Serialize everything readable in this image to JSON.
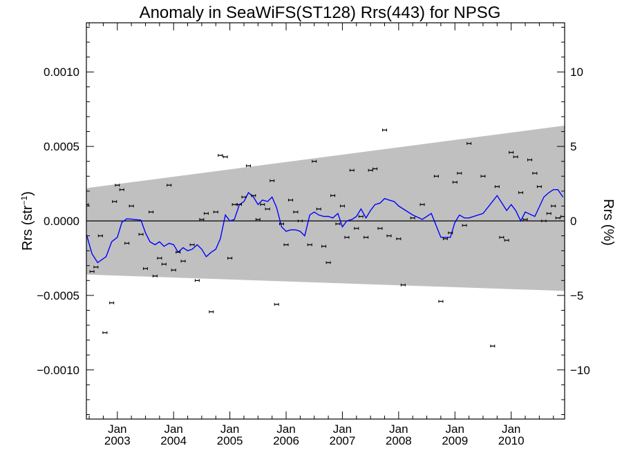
{
  "chart_data": {
    "type": "line",
    "title": "Anomaly in SeaWiFS(ST128) Rrs(443) for NPSG",
    "ylabel_left": "Rrs (str",
    "ylabel_left_sup": "−1",
    "ylabel_left_end": ")",
    "ylabel_right": "Rrs (%)",
    "xlim": [
      2002.45,
      2010.95
    ],
    "ylim": [
      -0.00133,
      0.00133
    ],
    "ylim_right": [
      -13.3,
      13.3
    ],
    "left_ticks": [
      {
        "value": 0.001,
        "label": "0.0010"
      },
      {
        "value": 0.0005,
        "label": "0.0005"
      },
      {
        "value": 0.0,
        "label": "0.0000"
      },
      {
        "value": -0.0005,
        "label": "−0.0005"
      },
      {
        "value": -0.001,
        "label": "−0.0010"
      }
    ],
    "right_ticks": [
      {
        "value": 10,
        "label": "10"
      },
      {
        "value": 5,
        "label": "5"
      },
      {
        "value": 0,
        "label": "0"
      },
      {
        "value": -5,
        "label": "−5"
      },
      {
        "value": -10,
        "label": "−10"
      }
    ],
    "x_ticks": [
      {
        "value": 2003.0,
        "month": "Jan",
        "year": "2003"
      },
      {
        "value": 2004.0,
        "month": "Jan",
        "year": "2004"
      },
      {
        "value": 2005.0,
        "month": "Jan",
        "year": "2005"
      },
      {
        "value": 2006.0,
        "month": "Jan",
        "year": "2006"
      },
      {
        "value": 2007.0,
        "month": "Jan",
        "year": "2007"
      },
      {
        "value": 2008.0,
        "month": "Jan",
        "year": "2008"
      },
      {
        "value": 2009.0,
        "month": "Jan",
        "year": "2009"
      },
      {
        "value": 2010.0,
        "month": "Jan",
        "year": "2010"
      }
    ],
    "band": {
      "x": [
        2002.45,
        2010.95
      ],
      "upper": [
        0.00022,
        0.00064
      ],
      "lower": [
        -0.00036,
        -0.00047
      ],
      "color": "#c0c0c0"
    },
    "zero_line": 0.0,
    "series": [
      {
        "color": "#0000ff",
        "x": [
          2002.45,
          2002.55,
          2002.65,
          2002.8,
          2002.9,
          2003.0,
          2003.08,
          2003.17,
          2003.25,
          2003.42,
          2003.5,
          2003.58,
          2003.67,
          2003.75,
          2003.83,
          2003.92,
          2004.0,
          2004.08,
          2004.17,
          2004.25,
          2004.33,
          2004.42,
          2004.5,
          2004.58,
          2004.67,
          2004.75,
          2004.83,
          2004.92,
          2005.0,
          2005.08,
          2005.17,
          2005.25,
          2005.33,
          2005.42,
          2005.5,
          2005.58,
          2005.67,
          2005.75,
          2005.83,
          2005.92,
          2006.0,
          2006.08,
          2006.17,
          2006.25,
          2006.33,
          2006.42,
          2006.5,
          2006.58,
          2006.67,
          2006.75,
          2006.83,
          2006.92,
          2007.0,
          2007.08,
          2007.17,
          2007.25,
          2007.33,
          2007.42,
          2007.5,
          2007.58,
          2007.67,
          2007.75,
          2007.83,
          2007.92,
          2008.0,
          2008.25,
          2008.42,
          2008.58,
          2008.75,
          2008.83,
          2008.92,
          2009.0,
          2009.08,
          2009.17,
          2009.25,
          2009.5,
          2009.75,
          2009.92,
          2010.0,
          2010.08,
          2010.17,
          2010.25,
          2010.42,
          2010.58,
          2010.67,
          2010.75,
          2010.83,
          2010.92
        ],
        "y": [
          -9e-05,
          -0.00022,
          -0.00028,
          -0.00024,
          -0.00014,
          -0.00011,
          -1e-05,
          1.5e-05,
          1.2e-05,
          5e-06,
          -8e-05,
          -0.00014,
          -0.00016,
          -0.00014,
          -0.00017,
          -0.00015,
          -0.00016,
          -0.00021,
          -0.00018,
          -0.0002,
          -0.00019,
          -0.00016,
          -0.00019,
          -0.00024,
          -0.00021,
          -0.00019,
          -0.00012,
          4e-05,
          0.0,
          1e-05,
          0.00011,
          0.00013,
          0.00019,
          0.00016,
          0.00011,
          0.00014,
          0.00013,
          0.00016,
          9e-05,
          -4e-05,
          -7e-05,
          -6e-05,
          -6e-05,
          -7e-05,
          -0.0001,
          4e-05,
          6e-05,
          4e-05,
          3e-05,
          3e-05,
          2e-05,
          5e-05,
          -4e-05,
          0.0,
          1e-05,
          3e-05,
          8e-05,
          2e-05,
          7e-05,
          0.00011,
          0.00012,
          0.00015,
          0.00014,
          0.00013,
          0.0001,
          4e-05,
          1e-05,
          5e-05,
          -0.00011,
          -0.00011,
          -0.00011,
          -1e-05,
          4e-05,
          2e-05,
          2e-05,
          5e-05,
          0.00017,
          7e-05,
          0.00011,
          7e-05,
          0.0,
          6e-05,
          3e-05,
          0.00016,
          0.00019,
          0.00021,
          0.00021,
          0.00016
        ]
      },
      {
        "type": "scatter",
        "color": "#000000",
        "marker": "errorbar",
        "x": [
          2002.45,
          2002.55,
          2002.62,
          2002.7,
          2002.78,
          2002.9,
          2002.95,
          2003.0,
          2003.08,
          2003.17,
          2003.25,
          2003.42,
          2003.5,
          2003.6,
          2003.67,
          2003.75,
          2003.83,
          2003.92,
          2004.0,
          2004.08,
          2004.17,
          2004.33,
          2004.42,
          2004.5,
          2004.58,
          2004.67,
          2004.75,
          2004.83,
          2004.92,
          2005.0,
          2005.08,
          2005.17,
          2005.25,
          2005.33,
          2005.42,
          2005.5,
          2005.58,
          2005.67,
          2005.75,
          2005.83,
          2005.92,
          2006.0,
          2006.08,
          2006.17,
          2006.25,
          2006.42,
          2006.5,
          2006.58,
          2006.67,
          2006.75,
          2006.83,
          2006.92,
          2007.0,
          2007.08,
          2007.17,
          2007.25,
          2007.33,
          2007.42,
          2007.5,
          2007.58,
          2007.67,
          2007.75,
          2007.83,
          2008.0,
          2008.08,
          2008.25,
          2008.42,
          2008.67,
          2008.75,
          2008.83,
          2008.92,
          2009.0,
          2009.08,
          2009.17,
          2009.25,
          2009.5,
          2009.67,
          2009.75,
          2009.83,
          2009.92,
          2010.0,
          2010.08,
          2010.17,
          2010.25,
          2010.33,
          2010.42,
          2010.5,
          2010.58,
          2010.67,
          2010.75,
          2010.83,
          2010.92
        ],
        "y": [
          0.00011,
          -0.00034,
          -0.00031,
          -0.0001,
          -0.00075,
          -0.00055,
          0.00013,
          0.00024,
          0.00021,
          -0.00015,
          0.0001,
          -9e-05,
          -0.00032,
          6e-05,
          -0.00037,
          -0.00025,
          -0.00029,
          0.00024,
          -0.00033,
          -0.00021,
          -0.00027,
          -0.00016,
          -0.0004,
          1e-05,
          5e-05,
          -0.00061,
          6e-05,
          0.00044,
          0.00043,
          -0.00025,
          0.00011,
          0.00011,
          0.00016,
          0.00037,
          0.00017,
          1e-05,
          0.00011,
          8e-05,
          0.00027,
          -0.00056,
          -2e-05,
          -0.00016,
          0.00014,
          6e-05,
          0.0,
          -0.00016,
          0.0004,
          8e-05,
          -0.00017,
          -0.00028,
          0.00017,
          -2e-05,
          0.0001,
          -0.00011,
          0.00034,
          -5e-05,
          3e-05,
          -0.00011,
          0.00034,
          0.00035,
          -5e-05,
          0.00061,
          -0.0001,
          -0.00012,
          -0.00043,
          2e-05,
          0.00011,
          0.0003,
          -0.00054,
          -0.00012,
          -8e-05,
          0.00026,
          0.00032,
          -3e-05,
          0.00052,
          0.0003,
          -0.00084,
          0.00023,
          -0.00011,
          -0.00013,
          0.00046,
          0.00043,
          0.00019,
          1e-05,
          0.00041,
          0.00032,
          0.00023,
          0.0,
          5e-05,
          0.0001,
          2e-05,
          3e-05
        ]
      }
    ]
  }
}
